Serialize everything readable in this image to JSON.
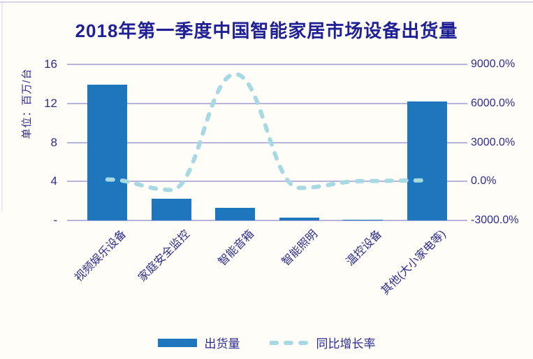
{
  "chart_data": {
    "type": "bar",
    "combo": "bar+line",
    "title": "2018年第一季度中国智能家居市场设备出货量",
    "categories": [
      "视频娱乐设备",
      "家庭安全监控",
      "智能音箱",
      "智能照明",
      "温控设备",
      "其他(大小家电等)"
    ],
    "series": [
      {
        "name": "出货量",
        "type": "bar",
        "axis": "left",
        "values": [
          13.9,
          2.2,
          1.3,
          0.3,
          0.05,
          12.2
        ]
      },
      {
        "name": "同比增长率",
        "type": "line",
        "axis": "right",
        "values": [
          150,
          -650,
          8250,
          -500,
          30,
          80
        ]
      }
    ],
    "left_axis": {
      "label": "单位：百万/台",
      "min": 0,
      "max": 16,
      "ticks": [
        "16",
        "12",
        "8",
        "4",
        "-"
      ]
    },
    "right_axis": {
      "min": -3000,
      "max": 9000,
      "ticks": [
        "9000.0%",
        "6000.0%",
        "3000.0%",
        "0.0%",
        "-3000.0%"
      ]
    },
    "grid": true,
    "legend_position": "bottom",
    "colors": {
      "bar": "#1e76bd",
      "line": "#a7d9e2",
      "grid": "#b9b4dc",
      "text": "#2c2c8e",
      "title": "#1f1f96",
      "background": "#fffdf7"
    }
  }
}
